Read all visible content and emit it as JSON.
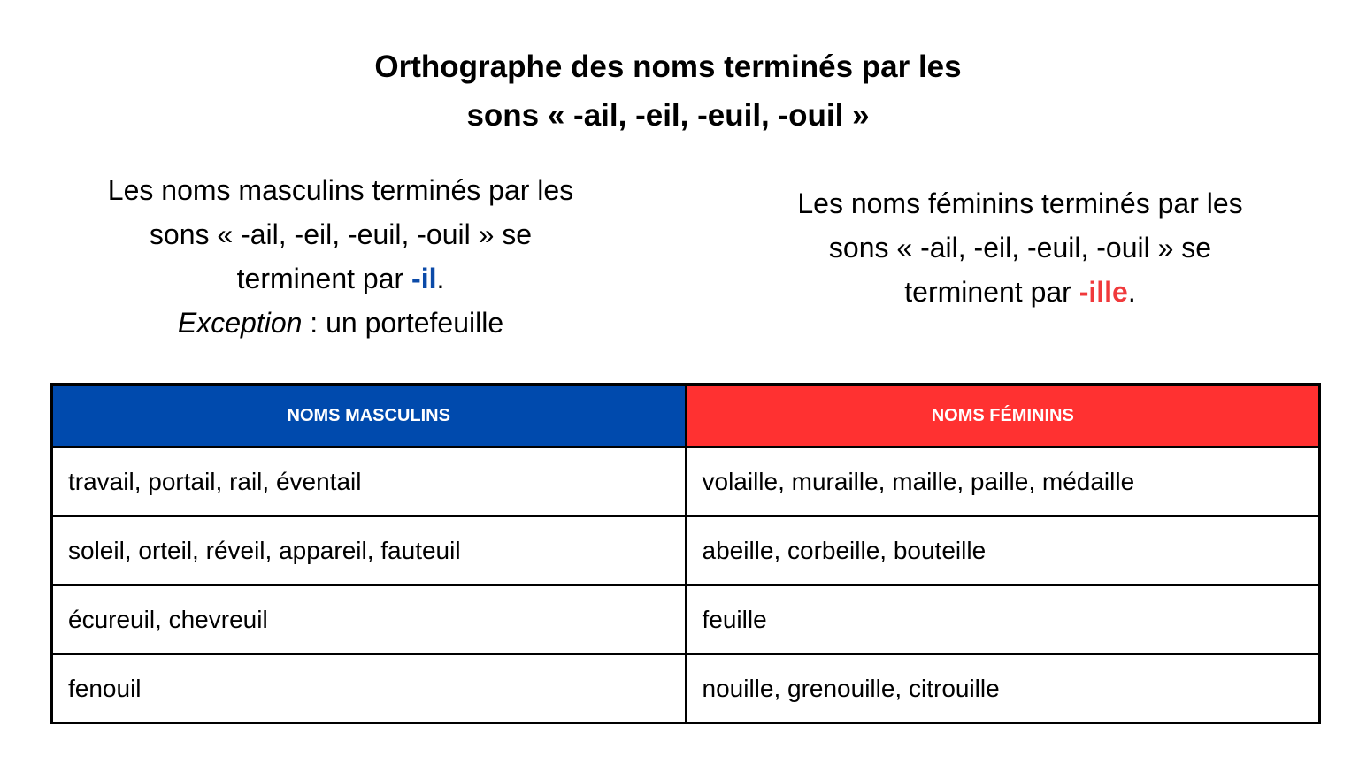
{
  "header": {
    "title_lines": [
      "Orthographe des noms terminés par les",
      "sons « -ail, -eil, -euil, -ouil »"
    ]
  },
  "masculine_rule": {
    "lines": [
      "Les noms masculins terminés par les",
      "sons « -ail, -eil, -euil, -ouil » se"
    ],
    "ending_intro": "terminent par",
    "ending": "-il",
    "period": ".",
    "exception_label": "Exception",
    "exception_text": ": un portefeuille"
  },
  "feminine_rule": {
    "lines": [
      "Les noms féminins terminés par les",
      "sons « -ail, -eil, -euil, -ouil » se"
    ],
    "ending_intro": "terminent par",
    "ending": "-ille",
    "period": "."
  },
  "table": {
    "headers": [
      "NOMS MASCULINS",
      "NOMS FÉMININS"
    ],
    "rows": [
      [
        "travail, portail, rail, éventail",
        "volaille, muraille, maille, paille, médaille"
      ],
      [
        "soleil, orteil, réveil, appareil, fauteuil",
        "abeille, corbeille, bouteille"
      ],
      [
        "écureuil, chevreuil",
        "feuille"
      ],
      [
        "fenouil",
        "nouille, grenouille, citrouille"
      ]
    ]
  }
}
